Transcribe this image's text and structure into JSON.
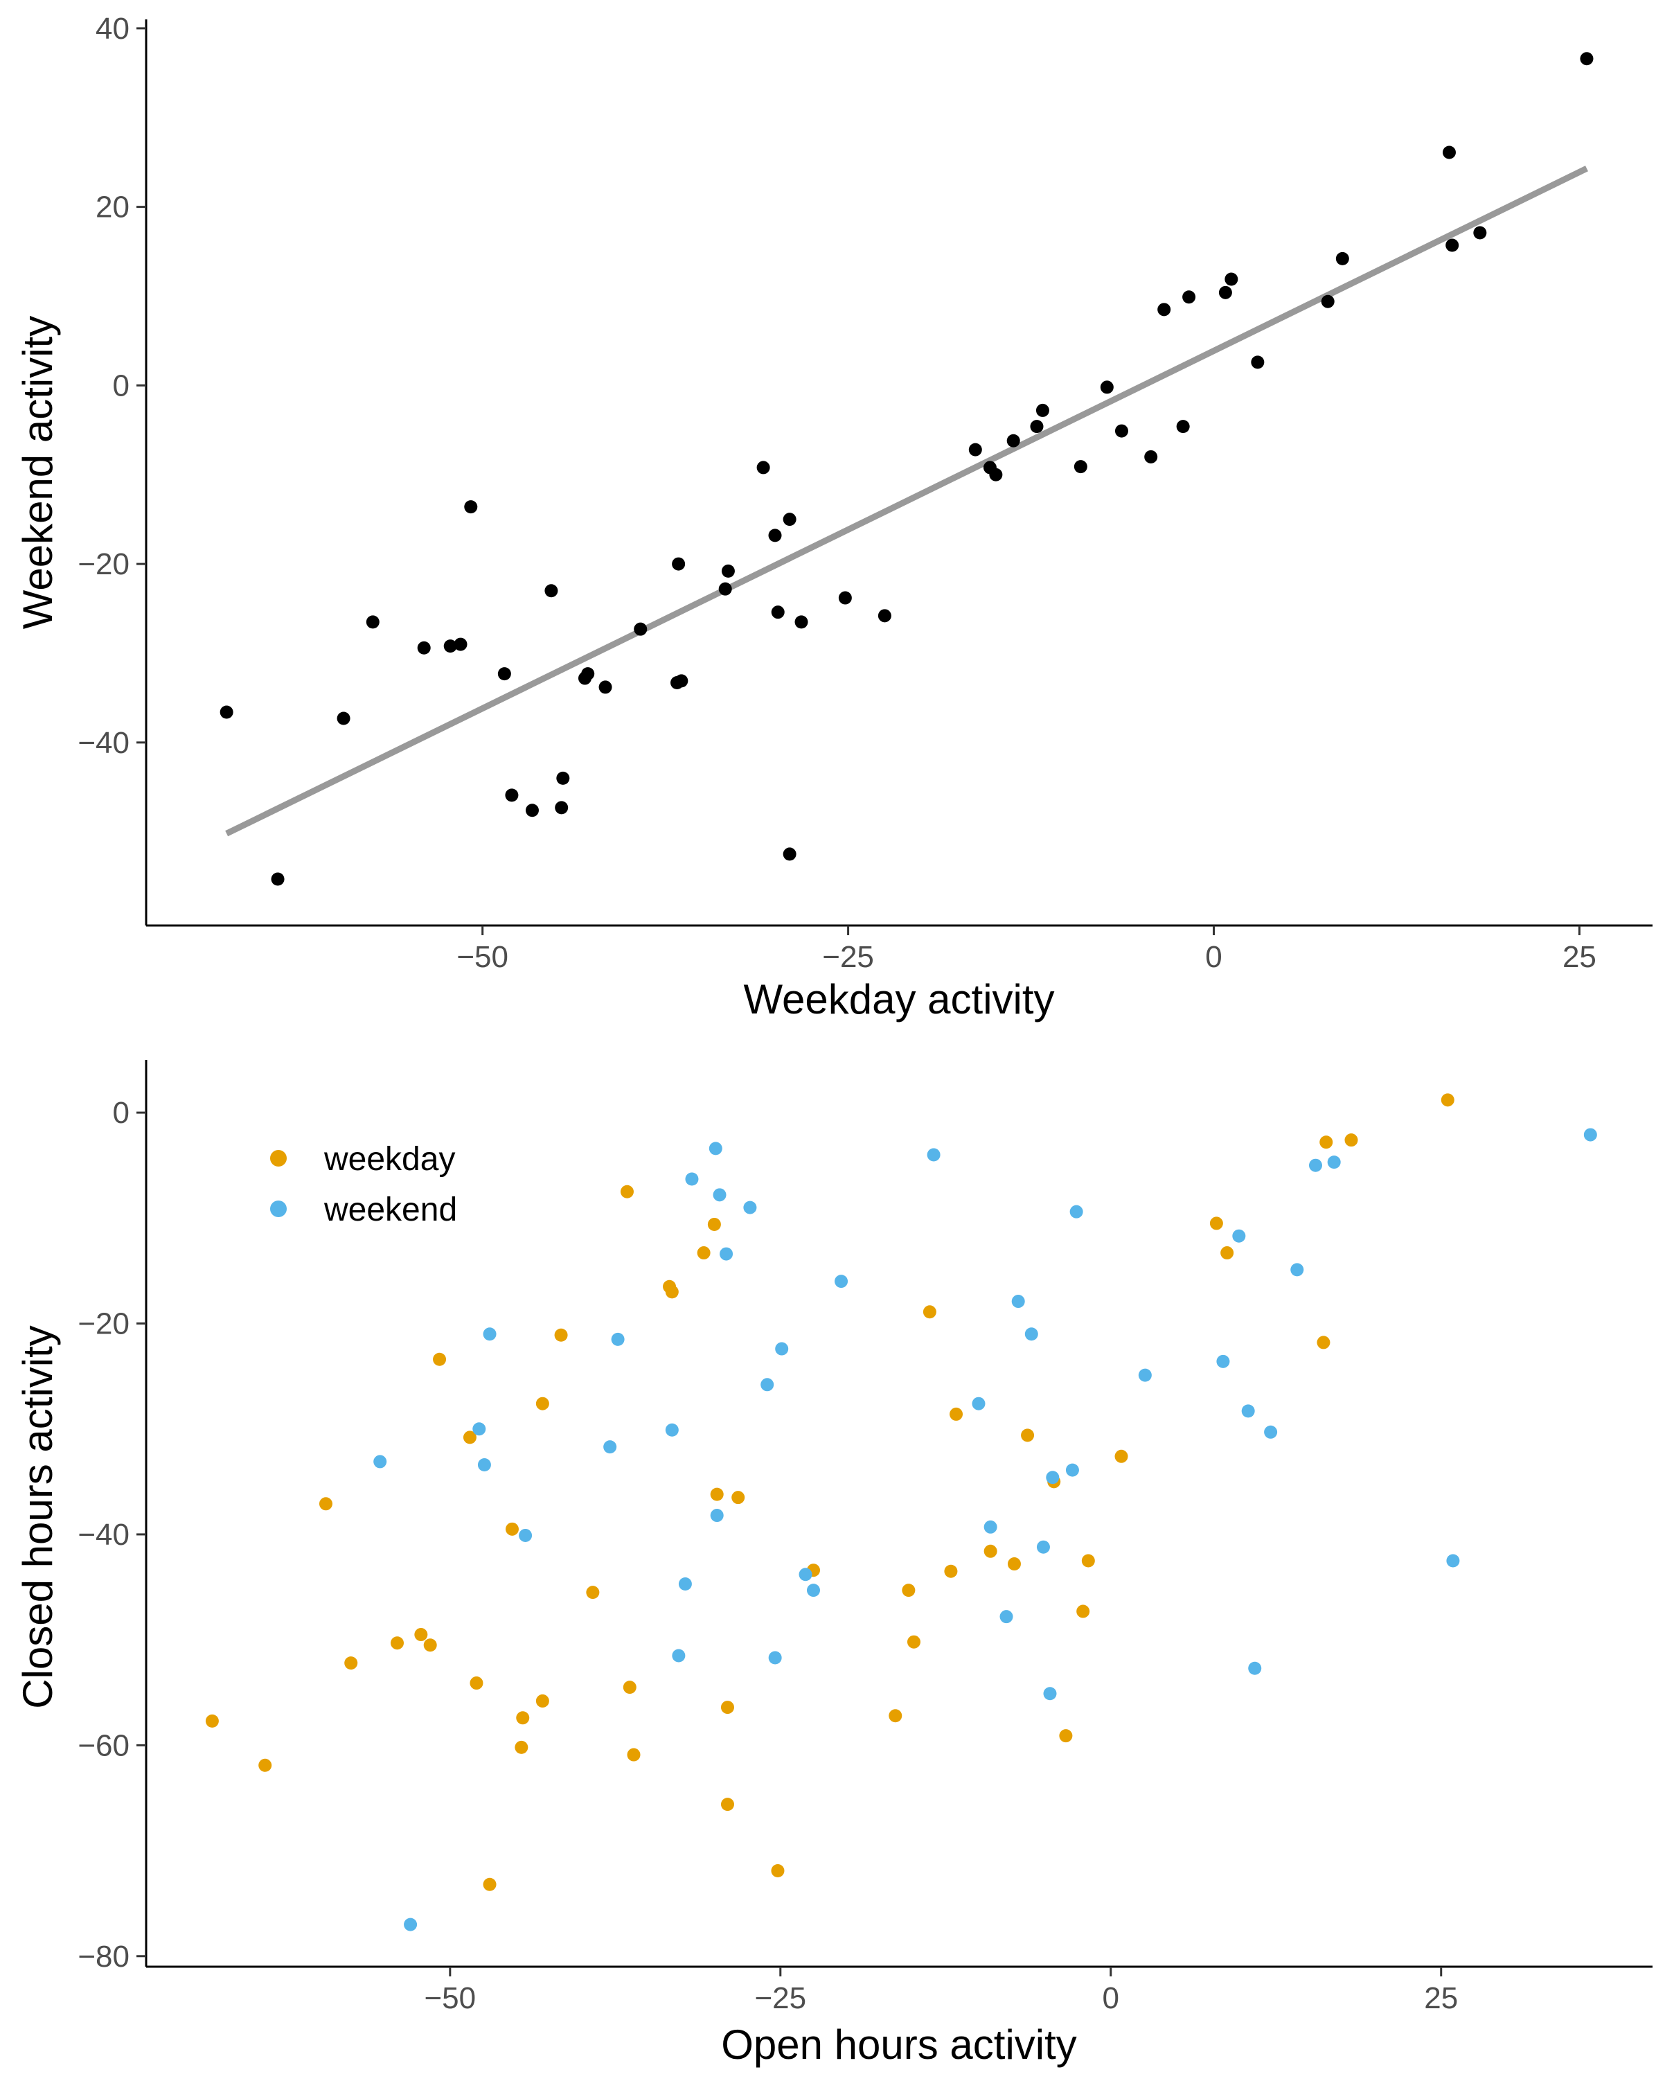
{
  "colors": {
    "point_top": "#000000",
    "fit_line": "#999999",
    "weekday": "#E69F00",
    "weekend": "#56B4E9"
  },
  "chart_data": [
    {
      "type": "scatter",
      "xlabel": "Weekday activity",
      "ylabel": "Weekend activity",
      "xlim": [
        -73,
        30
      ],
      "ylim": [
        -60.5,
        41
      ],
      "xticks": [
        -50,
        -25,
        0,
        25
      ],
      "xtick_labels": [
        "−50",
        "−25",
        "0",
        "25"
      ],
      "yticks": [
        -40,
        -20,
        0,
        20,
        40
      ],
      "ytick_labels": [
        "−40",
        "−20",
        "0",
        "20",
        "40"
      ],
      "grid": false,
      "fit_line": {
        "x": [
          -67.5,
          25.5
        ],
        "y": [
          -50.2,
          24.3
        ]
      },
      "series": [
        {
          "points": [
            [
              -67.5,
              -36.6
            ],
            [
              -64.0,
              -55.3
            ],
            [
              -59.5,
              -37.3
            ],
            [
              -57.5,
              -26.5
            ],
            [
              -54.0,
              -29.4
            ],
            [
              -52.2,
              -29.2
            ],
            [
              -51.5,
              -29.0
            ],
            [
              -50.8,
              -13.6
            ],
            [
              -48.5,
              -32.3
            ],
            [
              -48.0,
              -45.9
            ],
            [
              -46.6,
              -47.6
            ],
            [
              -45.3,
              -23.0
            ],
            [
              -44.6,
              -47.3
            ],
            [
              -44.5,
              -44.0
            ],
            [
              -43.0,
              -32.8
            ],
            [
              -42.8,
              -32.3
            ],
            [
              -41.6,
              -33.8
            ],
            [
              -39.2,
              -27.3
            ],
            [
              -36.7,
              -33.3
            ],
            [
              -36.4,
              -33.1
            ],
            [
              -36.6,
              -20.0
            ],
            [
              -33.4,
              -22.8
            ],
            [
              -33.2,
              -20.8
            ],
            [
              -30.8,
              -9.2
            ],
            [
              -30.0,
              -16.8
            ],
            [
              -29.8,
              -25.4
            ],
            [
              -29.0,
              -15.0
            ],
            [
              -29.0,
              -52.5
            ],
            [
              -28.2,
              -26.5
            ],
            [
              -25.2,
              -23.8
            ],
            [
              -22.5,
              -25.8
            ],
            [
              -16.3,
              -7.2
            ],
            [
              -15.3,
              -9.2
            ],
            [
              -14.9,
              -10.0
            ],
            [
              -13.7,
              -6.2
            ],
            [
              -12.1,
              -4.6
            ],
            [
              -11.7,
              -2.8
            ],
            [
              -9.1,
              -9.1
            ],
            [
              -7.3,
              -0.2
            ],
            [
              -6.3,
              -5.1
            ],
            [
              -4.3,
              -8.0
            ],
            [
              -3.4,
              8.5
            ],
            [
              -2.1,
              -4.6
            ],
            [
              -1.7,
              9.9
            ],
            [
              0.8,
              10.4
            ],
            [
              1.2,
              11.9
            ],
            [
              3.0,
              2.6
            ],
            [
              7.8,
              9.4
            ],
            [
              8.8,
              14.2
            ],
            [
              16.1,
              26.1
            ],
            [
              16.3,
              15.7
            ],
            [
              18.2,
              17.1
            ],
            [
              25.5,
              36.6
            ]
          ]
        }
      ]
    },
    {
      "type": "scatter",
      "xlabel": "Open hours activity",
      "ylabel": "Closed hours activity",
      "xlim": [
        -73,
        41
      ],
      "ylim": [
        -81,
        5
      ],
      "xticks": [
        -50,
        -25,
        0,
        25
      ],
      "xtick_labels": [
        "−50",
        "−25",
        "0",
        "25"
      ],
      "yticks": [
        -80,
        -60,
        -40,
        -20,
        0
      ],
      "ytick_labels": [
        "−80",
        "−60",
        "−40",
        "−20",
        "0"
      ],
      "grid": false,
      "legend": {
        "position": "top-left"
      },
      "series": [
        {
          "name": "weekday",
          "points": [
            [
              -68.0,
              -57.7
            ],
            [
              -64.0,
              -61.9
            ],
            [
              -59.4,
              -37.1
            ],
            [
              -57.5,
              -52.2
            ],
            [
              -54.0,
              -50.3
            ],
            [
              -52.2,
              -49.5
            ],
            [
              -51.5,
              -50.5
            ],
            [
              -50.8,
              -23.4
            ],
            [
              -48.5,
              -30.8
            ],
            [
              -48.0,
              -54.1
            ],
            [
              -47.0,
              -73.2
            ],
            [
              -45.3,
              -39.5
            ],
            [
              -44.6,
              -60.2
            ],
            [
              -44.5,
              -57.4
            ],
            [
              -43.0,
              -27.6
            ],
            [
              -43.0,
              -55.8
            ],
            [
              -41.6,
              -21.1
            ],
            [
              -39.2,
              -45.5
            ],
            [
              -36.6,
              -7.5
            ],
            [
              -36.4,
              -54.5
            ],
            [
              -36.1,
              -60.9
            ],
            [
              -33.4,
              -16.5
            ],
            [
              -33.2,
              -17.0
            ],
            [
              -30.8,
              -13.3
            ],
            [
              -30.0,
              -10.6
            ],
            [
              -29.8,
              -36.2
            ],
            [
              -29.0,
              -56.4
            ],
            [
              -29.0,
              -65.6
            ],
            [
              -28.2,
              -36.5
            ],
            [
              -25.2,
              -71.9
            ],
            [
              -22.5,
              -43.4
            ],
            [
              -16.3,
              -57.2
            ],
            [
              -15.3,
              -45.3
            ],
            [
              -14.9,
              -50.2
            ],
            [
              -13.7,
              -18.9
            ],
            [
              -12.1,
              -43.5
            ],
            [
              -11.7,
              -28.6
            ],
            [
              -9.1,
              -41.6
            ],
            [
              -7.3,
              -42.8
            ],
            [
              -6.3,
              -30.6
            ],
            [
              -4.3,
              -35.0
            ],
            [
              -3.4,
              -59.1
            ],
            [
              -2.1,
              -47.3
            ],
            [
              -1.7,
              -42.5
            ],
            [
              0.8,
              -32.6
            ],
            [
              8.0,
              -10.5
            ],
            [
              8.8,
              -13.3
            ],
            [
              16.1,
              -21.8
            ],
            [
              16.3,
              -2.8
            ],
            [
              18.2,
              -2.6
            ],
            [
              25.5,
              1.2
            ]
          ]
        },
        {
          "name": "weekend",
          "points": [
            [
              -55.3,
              -33.1
            ],
            [
              -53.0,
              -77.0
            ],
            [
              -47.0,
              -21.0
            ],
            [
              -47.8,
              -30.0
            ],
            [
              -47.4,
              -33.4
            ],
            [
              -44.3,
              -40.1
            ],
            [
              -37.3,
              -21.5
            ],
            [
              -37.9,
              -31.7
            ],
            [
              -33.2,
              -30.1
            ],
            [
              -32.7,
              -51.5
            ],
            [
              -32.2,
              -44.7
            ],
            [
              -31.7,
              -6.3
            ],
            [
              -29.9,
              -3.4
            ],
            [
              -29.8,
              -38.2
            ],
            [
              -29.6,
              -7.8
            ],
            [
              -29.1,
              -13.4
            ],
            [
              -27.3,
              -9.0
            ],
            [
              -26.0,
              -25.8
            ],
            [
              -25.4,
              -51.7
            ],
            [
              -24.9,
              -22.4
            ],
            [
              -23.1,
              -43.8
            ],
            [
              -22.5,
              -45.3
            ],
            [
              -20.4,
              -16.0
            ],
            [
              -13.4,
              -4.0
            ],
            [
              -10.0,
              -27.6
            ],
            [
              -9.1,
              -39.3
            ],
            [
              -7.9,
              -47.8
            ],
            [
              -7.0,
              -17.9
            ],
            [
              -6.0,
              -21.0
            ],
            [
              -5.1,
              -41.2
            ],
            [
              -4.6,
              -55.1
            ],
            [
              -4.4,
              -34.6
            ],
            [
              -2.6,
              -9.4
            ],
            [
              -2.9,
              -33.9
            ],
            [
              2.6,
              -24.9
            ],
            [
              8.5,
              -23.6
            ],
            [
              9.7,
              -11.7
            ],
            [
              10.4,
              -28.3
            ],
            [
              10.9,
              -52.7
            ],
            [
              12.1,
              -30.3
            ],
            [
              14.1,
              -14.9
            ],
            [
              15.5,
              -5.0
            ],
            [
              16.9,
              -4.7
            ],
            [
              25.9,
              -42.5
            ],
            [
              36.3,
              -2.1
            ]
          ]
        }
      ]
    }
  ]
}
